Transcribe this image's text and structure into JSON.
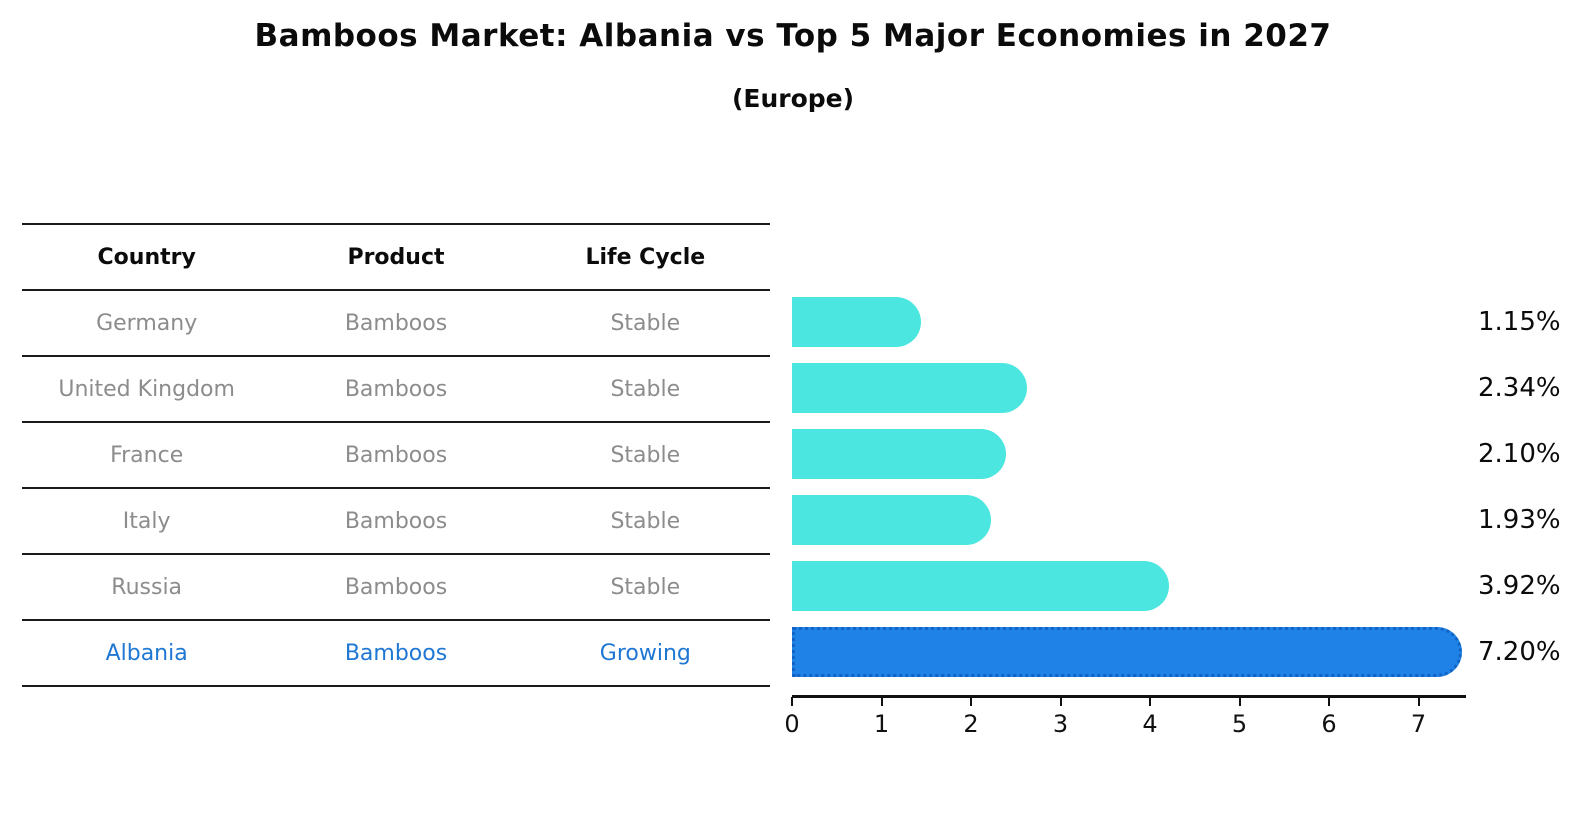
{
  "title": "Bamboos Market: Albania vs Top 5 Major Economies in 2027",
  "subtitle": "(Europe)",
  "table": {
    "headers": [
      "Country",
      "Product",
      "Life Cycle"
    ],
    "rows": [
      {
        "country": "Germany",
        "product": "Bamboos",
        "life_cycle": "Stable",
        "value": 1.15,
        "value_label": "1.15%",
        "highlight": false
      },
      {
        "country": "United Kingdom",
        "product": "Bamboos",
        "life_cycle": "Stable",
        "value": 2.34,
        "value_label": "2.34%",
        "highlight": false
      },
      {
        "country": "France",
        "product": "Bamboos",
        "life_cycle": "Stable",
        "value": 2.1,
        "value_label": "2.10%",
        "highlight": false
      },
      {
        "country": "Italy",
        "product": "Bamboos",
        "life_cycle": "Stable",
        "value": 1.93,
        "value_label": "1.93%",
        "highlight": false
      },
      {
        "country": "Russia",
        "product": "Bamboos",
        "life_cycle": "Stable",
        "value": 3.92,
        "value_label": "3.92%",
        "highlight": false
      },
      {
        "country": "Albania",
        "product": "Bamboos",
        "life_cycle": "Growing",
        "value": 7.2,
        "value_label": "7.20%",
        "highlight": true
      }
    ]
  },
  "chart_data": {
    "type": "bar",
    "orientation": "horizontal",
    "title": "Bamboos Market: Albania vs Top 5 Major Economies in 2027",
    "subtitle": "(Europe)",
    "categories": [
      "Germany",
      "United Kingdom",
      "France",
      "Italy",
      "Russia",
      "Albania"
    ],
    "values": [
      1.15,
      2.34,
      2.1,
      1.93,
      3.92,
      7.2
    ],
    "data_labels": [
      "1.15%",
      "2.34%",
      "2.10%",
      "1.93%",
      "3.92%",
      "7.20%"
    ],
    "xlabel": "",
    "ylabel": "",
    "xlim": [
      0,
      7.5
    ],
    "x_ticks": [
      0,
      1,
      2,
      3,
      4,
      5,
      6,
      7
    ],
    "grid": false,
    "legend": false,
    "highlight_category": "Albania"
  },
  "colors": {
    "bar_default": "#4BE6E0",
    "bar_highlight": "#1E82E6",
    "highlight_border": "#1263c6",
    "highlight_text": "#1f77d4",
    "table_text": "#8c8c8c",
    "heading_text": "#0b0b0b",
    "axis": "#111111"
  }
}
